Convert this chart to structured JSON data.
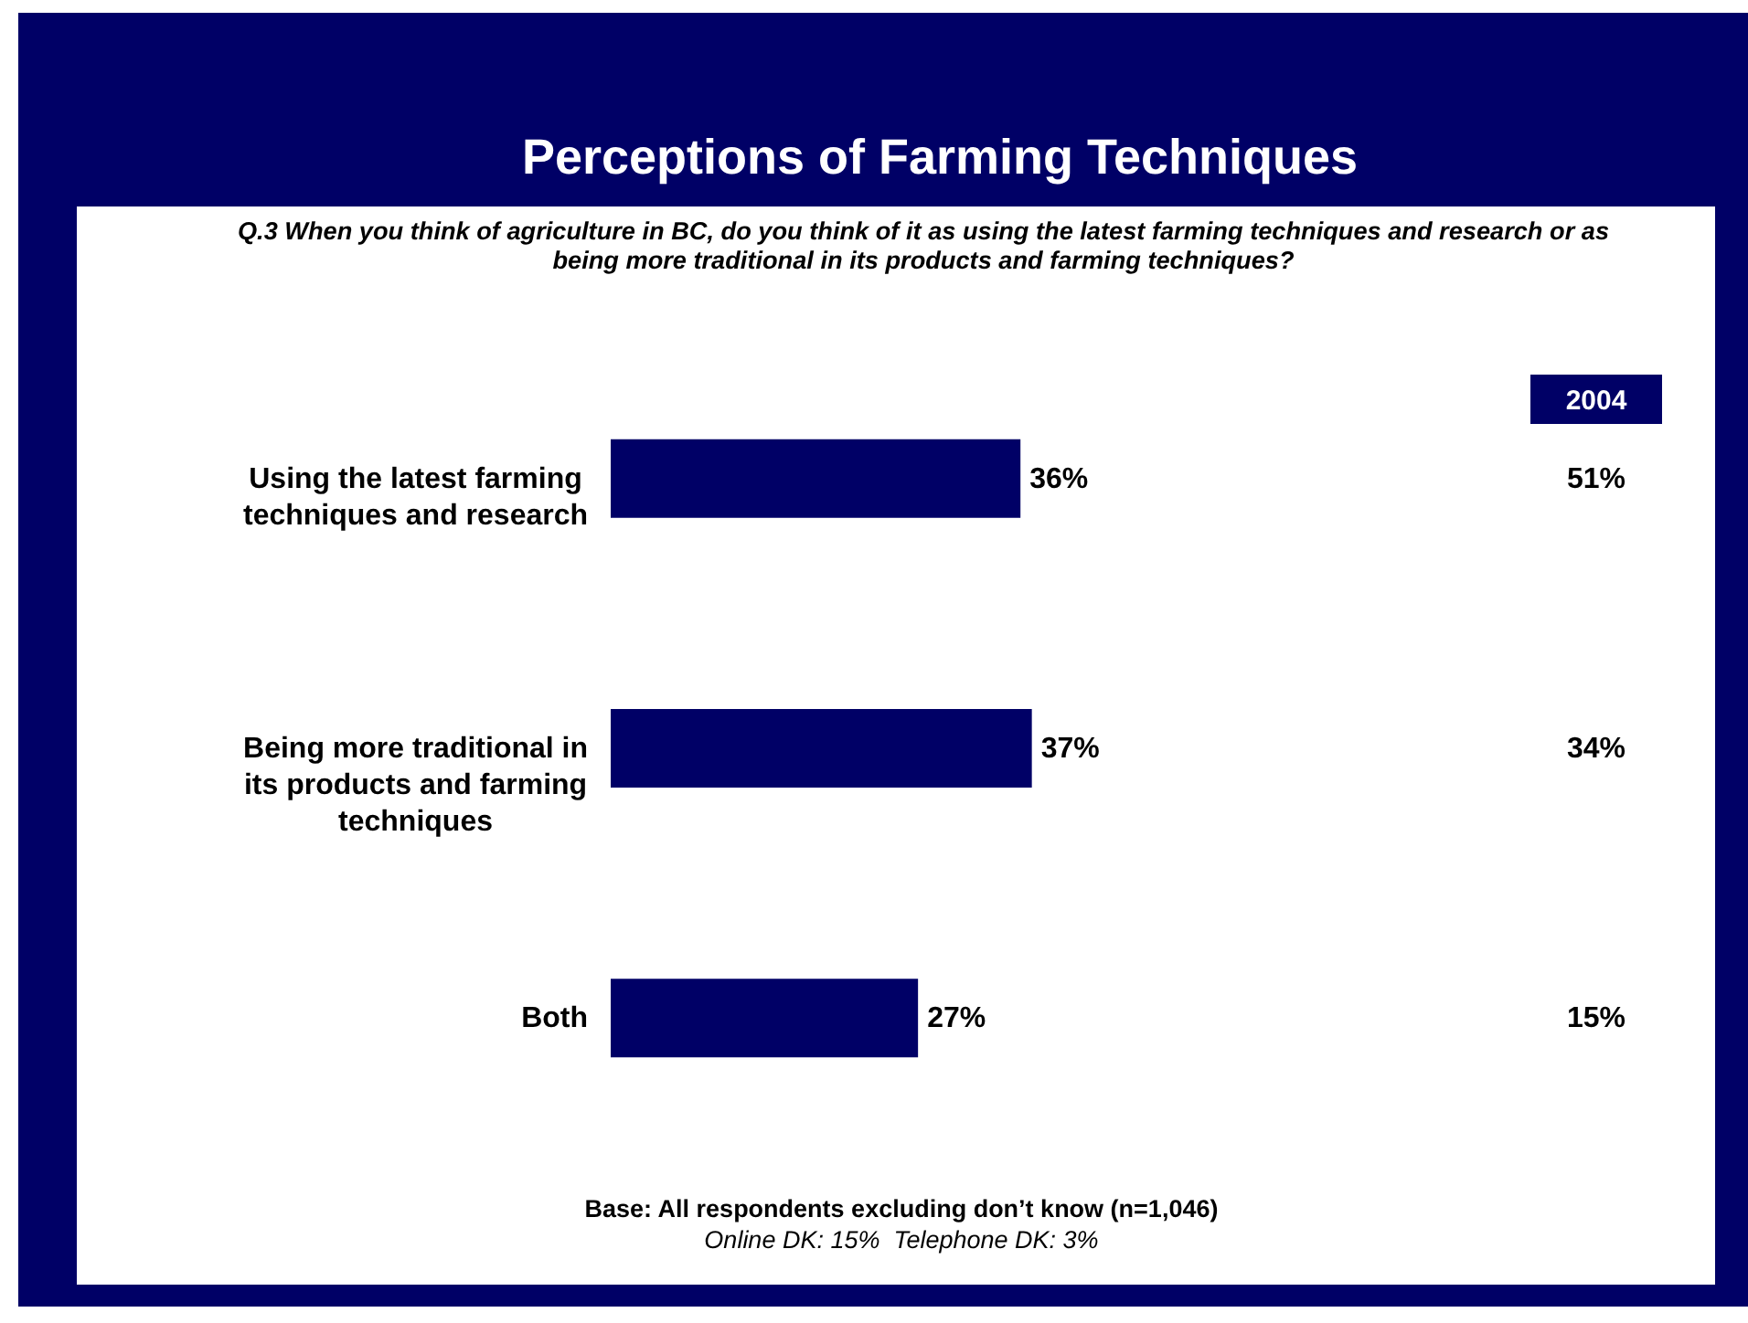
{
  "chart_data": {
    "type": "bar",
    "orientation": "horizontal",
    "title": "Perceptions of Farming Techniques",
    "subtitle": "Q.3 When you think of agriculture in BC, do you think of it as using the latest farming techniques and research or as being more traditional in its products and farming techniques?",
    "categories": [
      "Using the latest farming techniques and research",
      "Being more traditional in its products and farming techniques",
      "Both"
    ],
    "values": [
      36,
      37,
      27
    ],
    "color": "#000066",
    "value_labels": [
      "36%",
      "37%",
      "27%"
    ],
    "annotations": [
      "2004",
      "51%",
      "34%",
      "15%",
      "Base: All respondents excluding don’t know (n=1,046)",
      "Online DK: 15%  Telephone DK: 3%"
    ]
  }
}
